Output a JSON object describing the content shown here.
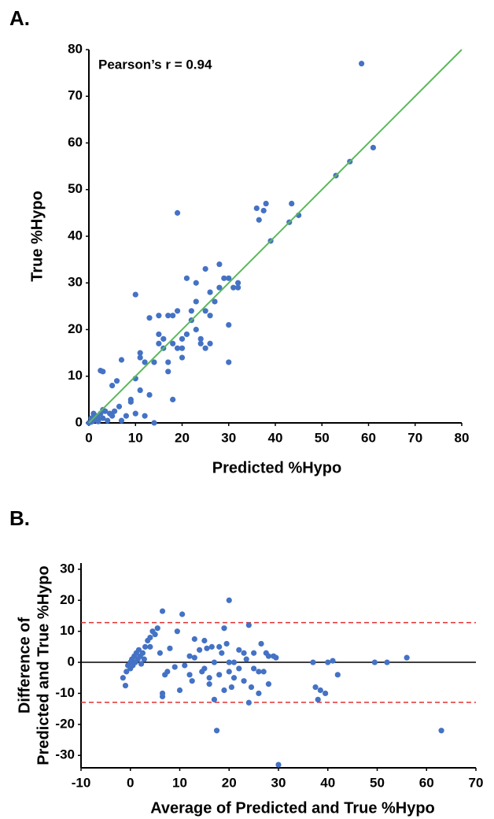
{
  "chart_data": [
    {
      "type": "scatter",
      "label": "A.",
      "annotation": "Pearson’s r = 0.94",
      "xlabel": "Predicted %Hypo",
      "ylabel": "True %Hypo",
      "color": "#4472c4",
      "xlim": [
        0,
        80
      ],
      "ylim": [
        0,
        80
      ],
      "xticks": [
        0,
        10,
        20,
        30,
        40,
        50,
        60,
        70,
        80
      ],
      "yticks": [
        0,
        10,
        20,
        30,
        40,
        50,
        60,
        70,
        80
      ],
      "x": [
        0,
        0.5,
        1,
        1.5,
        2,
        2.5,
        3,
        3.5,
        4,
        1,
        0.5,
        2,
        3,
        4.5,
        5,
        5.5,
        2.5,
        3,
        5,
        6,
        6.5,
        7,
        7,
        8,
        9,
        9,
        10,
        10,
        10,
        11,
        11,
        11,
        12,
        12,
        13,
        13,
        14,
        14,
        15,
        15,
        15,
        16,
        16,
        17,
        17,
        17,
        18,
        18,
        18,
        19,
        19,
        19,
        20,
        20,
        20,
        21,
        21,
        22,
        22,
        23,
        23,
        23,
        24,
        24,
        25,
        25,
        25,
        26,
        26,
        26,
        27,
        28,
        28,
        29,
        30,
        30,
        30,
        31,
        32,
        32,
        36,
        36.5,
        37.5,
        38,
        39,
        43,
        43.5,
        45,
        53,
        56,
        58.5,
        61
      ],
      "values": [
        0,
        1,
        0.5,
        1.5,
        0.3,
        2,
        1,
        2.5,
        0.5,
        2,
        0.2,
        1,
        2.8,
        2,
        1.5,
        2.5,
        11.2,
        11,
        8,
        9,
        3.5,
        13.5,
        0.5,
        1.5,
        4.5,
        5,
        2,
        27.5,
        9.5,
        15,
        14,
        7,
        1.5,
        13,
        22.5,
        6,
        0,
        13,
        17,
        19,
        23,
        16,
        18,
        23,
        13,
        11,
        5,
        17,
        23,
        45,
        16,
        24,
        14,
        18,
        16,
        31,
        19,
        22,
        24,
        26,
        30,
        20,
        18,
        17,
        33,
        16,
        24,
        17,
        28,
        23,
        26,
        29,
        34,
        31,
        31,
        13,
        21,
        29,
        29,
        30,
        46,
        43.5,
        45.5,
        47,
        39,
        43,
        47,
        44.5,
        53,
        56,
        77,
        59
      ],
      "fit_line": {
        "x": [
          0,
          80
        ],
        "values": [
          0,
          80
        ],
        "color": "#5cb85c"
      }
    },
    {
      "type": "scatter",
      "label": "B.",
      "xlabel": "Average of Predicted and True %Hypo",
      "ylabel": [
        "Difference of",
        "Predicted and True %Hypo"
      ],
      "color": "#4472c4",
      "xlim": [
        -10,
        70
      ],
      "ylim": [
        -34,
        32
      ],
      "xticks": [
        -10,
        0,
        10,
        20,
        30,
        40,
        50,
        60,
        70
      ],
      "yticks": [
        -30,
        -20,
        -10,
        0,
        10,
        20,
        30
      ],
      "x": [
        -1.5,
        -1,
        -0.8,
        -0.5,
        0,
        0,
        0.3,
        0.5,
        0.8,
        1,
        1.2,
        1.5,
        1.7,
        2,
        2.2,
        2.5,
        2.8,
        3,
        3.5,
        4,
        4,
        4.5,
        5,
        5.5,
        6,
        6.5,
        6.5,
        6.5,
        7,
        7.5,
        8,
        9,
        9.5,
        10,
        10.5,
        11,
        12,
        12,
        12.5,
        13,
        13,
        14,
        14.5,
        15,
        15,
        15.5,
        16,
        16,
        16.5,
        17,
        17,
        17.5,
        18,
        18,
        18.5,
        19,
        19,
        19.5,
        20,
        20,
        20,
        20.5,
        21,
        21,
        22,
        22,
        23,
        23,
        23.5,
        24,
        24,
        24.5,
        25,
        25,
        26,
        26,
        26.5,
        27,
        27.5,
        28,
        28,
        29,
        29.5,
        30,
        37,
        37.5,
        38,
        38.5,
        39.5,
        40,
        41,
        42,
        49.5,
        52,
        56,
        63
      ],
      "values": [
        -5,
        -7.5,
        -3,
        -1,
        -2,
        0,
        1,
        -1,
        2,
        0,
        3,
        1,
        4,
        2,
        -0.5,
        3,
        1,
        5,
        7,
        8,
        5,
        10,
        9,
        11,
        3,
        16.5,
        -11,
        -10,
        -4,
        -3,
        4.5,
        -1.5,
        10,
        -9,
        15.5,
        -1,
        -4,
        2,
        -6,
        1.5,
        7.5,
        4,
        -3,
        -2,
        7,
        4.5,
        -5,
        -7,
        5,
        -12,
        0,
        -22,
        5,
        -4,
        3,
        -9,
        11,
        6,
        -3,
        20,
        0,
        -8,
        0,
        -5,
        4,
        -2,
        3,
        -6,
        1,
        -13,
        12,
        -8,
        -2,
        3,
        -3,
        -10,
        6,
        -3,
        3,
        -7,
        2,
        2,
        1.5,
        -33,
        0,
        -8,
        -12,
        -9,
        -10,
        0,
        0.5,
        -4,
        0,
        0,
        1.5,
        -22
      ],
      "hlines": [
        {
          "value": 12.8,
          "color": "#e03030",
          "style": "dashed"
        },
        {
          "value": -12.9,
          "color": "#e03030",
          "style": "dashed"
        },
        {
          "value": 0,
          "color": "#000000",
          "style": "solid"
        }
      ]
    }
  ]
}
